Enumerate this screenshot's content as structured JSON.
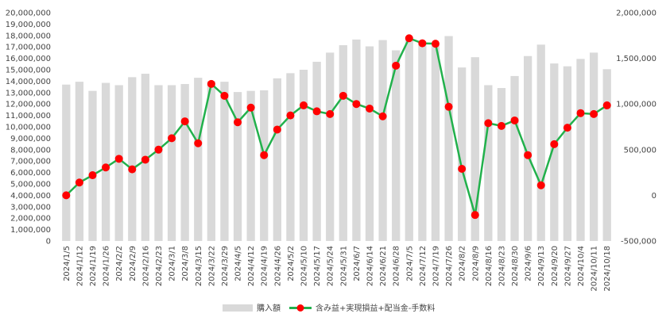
{
  "chart_data": {
    "type": "bar+line",
    "categories": [
      "2024/1/5",
      "2024/1/12",
      "2024/1/19",
      "2024/1/26",
      "2024/2/2",
      "2024/2/9",
      "2024/2/16",
      "2024/2/23",
      "2024/3/1",
      "2024/3/8",
      "2024/3/15",
      "2024/3/22",
      "2024/3/29",
      "2024/4/5",
      "2024/4/12",
      "2024/4/19",
      "2024/4/26",
      "2024/5/2",
      "2024/5/10",
      "2024/5/17",
      "2024/5/24",
      "2024/5/31",
      "2024/6/7",
      "2024/6/14",
      "2024/6/21",
      "2024/6/28",
      "2024/7/5",
      "2024/7/12",
      "2024/7/19",
      "2024/7/26",
      "2024/8/2",
      "2024/8/9",
      "2024/8/16",
      "2024/8/23",
      "2024/8/30",
      "2024/9/6",
      "2024/9/13",
      "2024/9/20",
      "2024/9/27",
      "2024/10/4",
      "2024/10/11",
      "2024/10/18"
    ],
    "x_tick_labels": [
      "2024/1/5",
      "2024/1/12",
      "2024/1/19",
      "2024/1/26",
      "2024/2/2",
      "2024/2/9",
      "2024/2/16",
      "2024/2/23",
      "2024/3/1",
      "2024/3/8",
      "2024/3/15",
      "2024/3/22",
      "2024/3/29",
      "2024/4/5",
      "2024/4/12",
      "2024/4/19",
      "2024/4/26",
      "2024/5/2",
      "2024/5/10",
      "2024/5/17",
      "2024/5/24",
      "2024/5/31",
      "2024/6/7",
      "2024/6/14",
      "2024/6/21",
      "2024/6/28",
      "2024/7/5",
      "2024/7/12",
      "2024/7/19",
      "2024/7/26",
      "2024/8/2",
      "2024/8/9",
      "2024/8/16",
      "2024/8/23",
      "2024/8/30",
      "2024/9/6",
      "2024/9/13",
      "2024/9/20",
      "2024/9/27",
      "2024/10/4",
      "2024/10/11",
      "2024/10/18"
    ],
    "series": [
      {
        "name": "購入額",
        "type": "bar",
        "axis": "left",
        "color": "#d9d9d9",
        "values": [
          13700000,
          13950000,
          13150000,
          13850000,
          13650000,
          14350000,
          14650000,
          13650000,
          13650000,
          13750000,
          14300000,
          14000000,
          13950000,
          13050000,
          13150000,
          13200000,
          14250000,
          14700000,
          15000000,
          15700000,
          16500000,
          17150000,
          17650000,
          17050000,
          17600000,
          16700000,
          17650000,
          17500000,
          17150000,
          17950000,
          15200000,
          16100000,
          13650000,
          13400000,
          14450000,
          16200000,
          17200000,
          15550000,
          15300000,
          15950000,
          16500000,
          15050000
        ]
      },
      {
        "name": "含み益+実現損益+配当金-手数料",
        "type": "line",
        "axis": "right",
        "color": "#22b14c",
        "marker_color": "#ff0000",
        "values": [
          0,
          140000,
          220000,
          305000,
          400000,
          285000,
          390000,
          500000,
          625000,
          810000,
          570000,
          1220000,
          1090000,
          800000,
          960000,
          440000,
          720000,
          875000,
          985000,
          920000,
          890000,
          1090000,
          1000000,
          950000,
          865000,
          1420000,
          1720000,
          1665000,
          1660000,
          970000,
          290000,
          -215000,
          790000,
          760000,
          820000,
          440000,
          110000,
          560000,
          740000,
          900000,
          890000,
          985000
        ]
      }
    ],
    "y_left": {
      "min": 0,
      "max": 20000000,
      "step": 1000000,
      "tick_labels": [
        "0",
        "1,000,000",
        "2,000,000",
        "3,000,000",
        "4,000,000",
        "5,000,000",
        "6,000,000",
        "7,000,000",
        "8,000,000",
        "9,000,000",
        "10,000,000",
        "11,000,000",
        "12,000,000",
        "13,000,000",
        "14,000,000",
        "15,000,000",
        "16,000,000",
        "17,000,000",
        "18,000,000",
        "19,000,000",
        "20,000,000"
      ]
    },
    "y_right": {
      "min": -500000,
      "max": 2000000,
      "step": 500000,
      "tick_labels": [
        "-500,000",
        "0",
        "500,000",
        "1,000,000",
        "1,500,000",
        "2,000,000"
      ],
      "negative_color": "#ff0000"
    },
    "grid": false,
    "legend_position": "bottom-center",
    "legend_labels": [
      "購入額",
      "含み益+実現損益+配当金-手数料"
    ]
  }
}
